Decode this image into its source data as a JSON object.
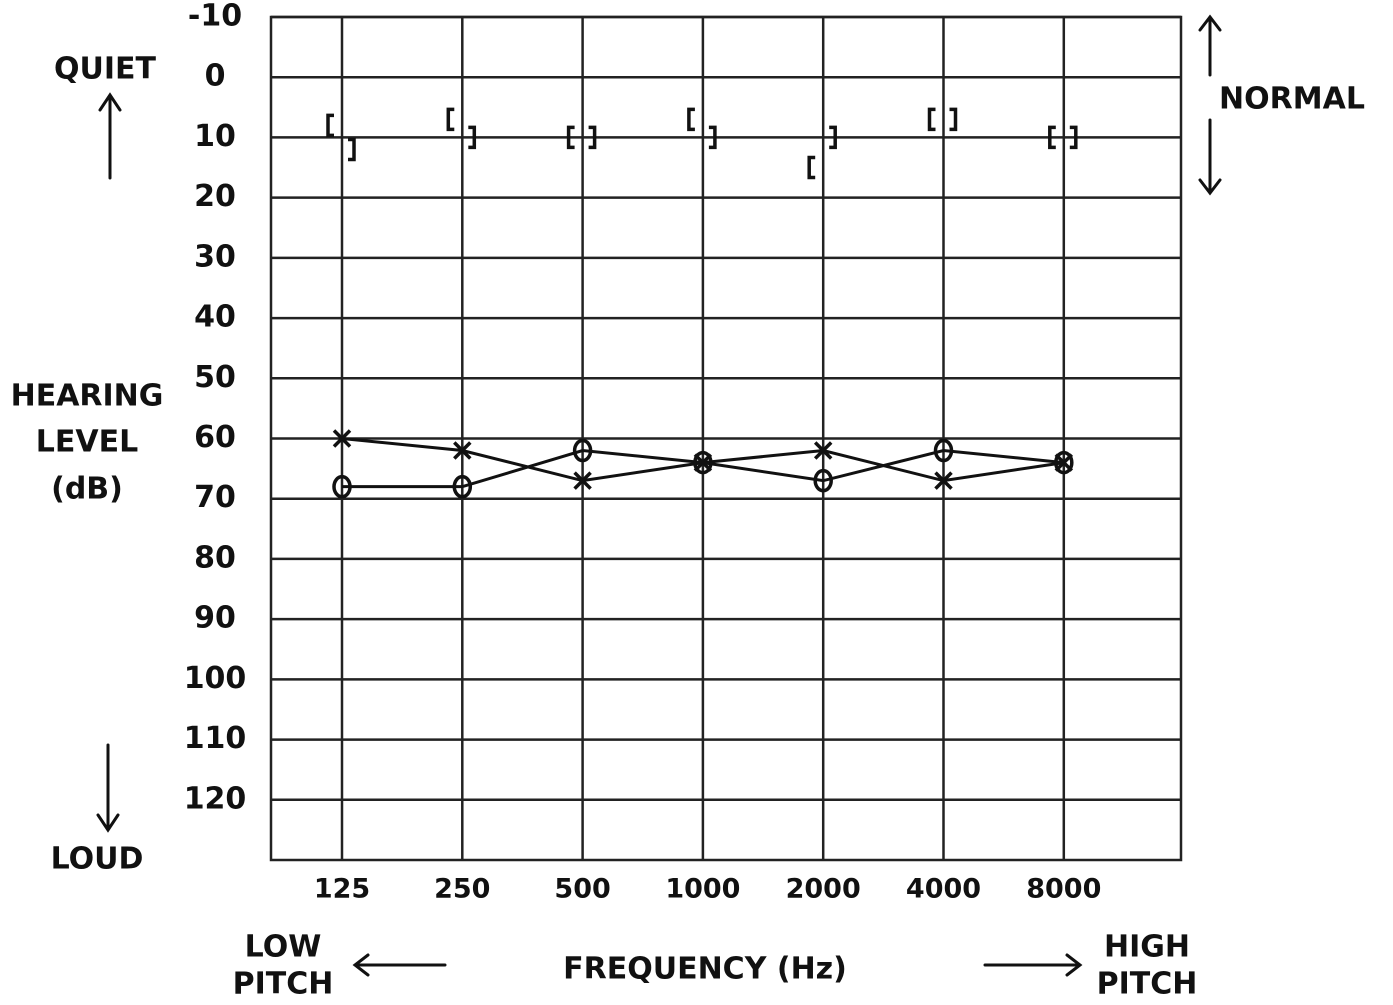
{
  "chart_data": {
    "type": "audiogram",
    "categories": [
      "125",
      "250",
      "500",
      "1000",
      "2000",
      "4000",
      "8000"
    ],
    "x_label": "FREQUENCY (Hz)",
    "y_label": [
      "HEARING",
      "LEVEL",
      "(dB)"
    ],
    "ylim": [
      -10,
      130
    ],
    "y_inverted": true,
    "yticks": [
      -10,
      0,
      10,
      20,
      30,
      40,
      50,
      60,
      70,
      80,
      90,
      100,
      110,
      120
    ],
    "grid": true,
    "annotations": {
      "top": "QUIET",
      "bottom": "LOUD",
      "right": "NORMAL",
      "left_pitch": [
        "LOW",
        "PITCH"
      ],
      "right_pitch": [
        "HIGH",
        "PITCH"
      ]
    },
    "series": [
      {
        "marker": "x",
        "connected": true,
        "color": "#111111",
        "values": [
          60,
          62,
          67,
          64,
          62,
          67,
          64
        ]
      },
      {
        "marker": "o",
        "connected": true,
        "color": "#111111",
        "values": [
          68,
          68,
          62,
          64,
          67,
          62,
          64
        ]
      },
      {
        "marker": "bracket-left",
        "connected": false,
        "color": "#111111",
        "values": [
          8,
          7,
          10,
          7,
          15,
          7,
          10
        ]
      },
      {
        "marker": "bracket-right",
        "connected": false,
        "color": "#111111",
        "values": [
          12,
          10,
          10,
          10,
          10,
          7,
          10
        ]
      }
    ]
  }
}
